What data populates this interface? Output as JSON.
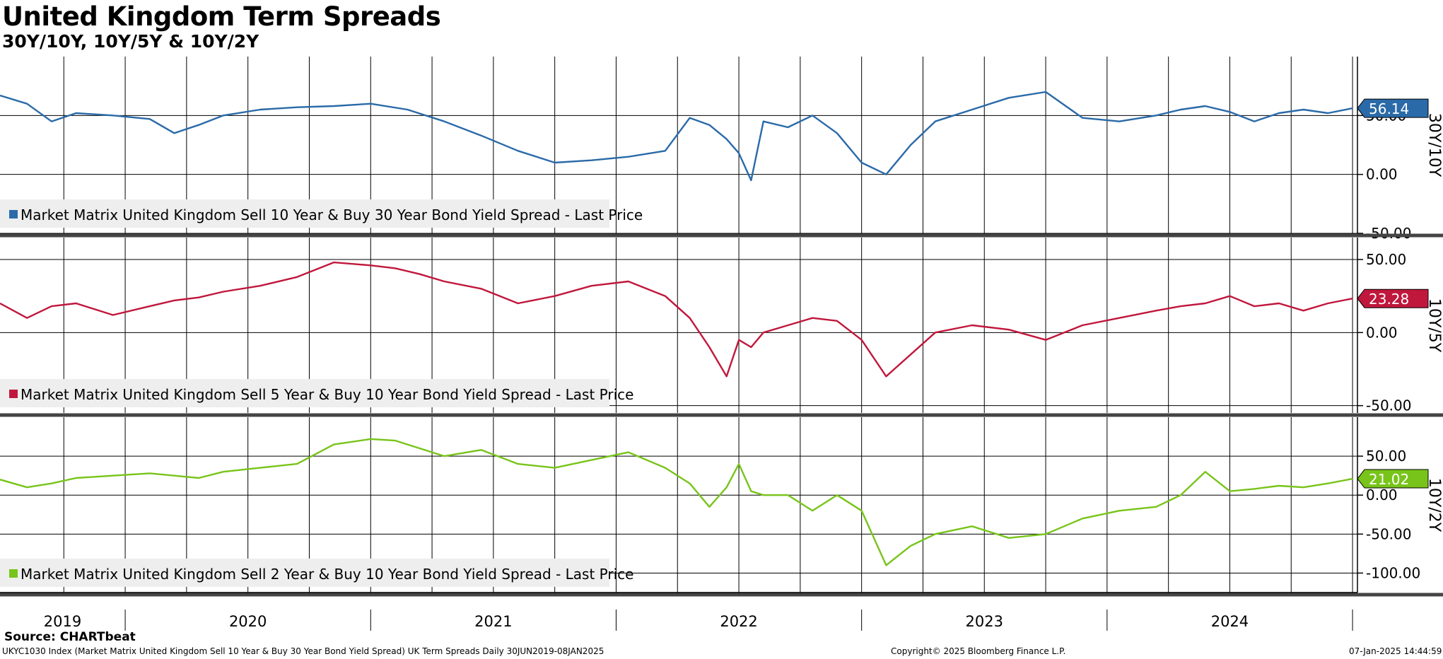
{
  "title": "United Kingdom Term Spreads",
  "subtitle": "30Y/10Y, 10Y/5Y & 10Y/2Y",
  "source": "Source: CHARTbeat",
  "footer": {
    "left": "UKYC1030 Index (Market Matrix United Kingdom Sell 10 Year & Buy 30 Year Bond Yield Spread) UK Term Spreads  Daily 30JUN2019-08JAN2025",
    "center": "Copyright© 2025 Bloomberg Finance L.P.",
    "right": "07-Jan-2025 14:44:59"
  },
  "chart_data": [
    {
      "type": "line",
      "panel_label": "30Y/10Y",
      "legend": "Market Matrix United Kingdom Sell 10 Year & Buy 30 Year Bond Yield Spread - Last Price",
      "color": "#2a6aa8",
      "last_value": "56.14",
      "ylim": [
        -50,
        100
      ],
      "yticks": [
        {
          "v": 50,
          "label": "50.00"
        },
        {
          "v": 0,
          "label": "0.00"
        },
        {
          "v": -50,
          "label": "-50.00"
        }
      ],
      "x": [
        2019.49,
        2019.6,
        2019.7,
        2019.8,
        2019.95,
        2020.1,
        2020.2,
        2020.3,
        2020.4,
        2020.55,
        2020.7,
        2020.85,
        2021.0,
        2021.15,
        2021.3,
        2021.45,
        2021.6,
        2021.75,
        2021.9,
        2022.05,
        2022.2,
        2022.3,
        2022.38,
        2022.45,
        2022.5,
        2022.55,
        2022.6,
        2022.7,
        2022.8,
        2022.9,
        2023.0,
        2023.1,
        2023.2,
        2023.3,
        2023.45,
        2023.6,
        2023.75,
        2023.9,
        2024.05,
        2024.2,
        2024.3,
        2024.4,
        2024.5,
        2024.6,
        2024.7,
        2024.8,
        2024.9,
        2025.0
      ],
      "values": [
        67,
        60,
        45,
        52,
        50,
        47,
        35,
        42,
        50,
        55,
        57,
        58,
        60,
        55,
        45,
        33,
        20,
        10,
        12,
        15,
        20,
        48,
        42,
        30,
        18,
        -5,
        45,
        40,
        50,
        35,
        10,
        0,
        25,
        45,
        55,
        65,
        70,
        48,
        45,
        50,
        55,
        58,
        53,
        45,
        52,
        55,
        52,
        56.14
      ]
    },
    {
      "type": "line",
      "panel_label": "10Y/5Y",
      "legend": "Market Matrix United Kingdom Sell 5 Year & Buy 10 Year Bond Yield Spread - Last Price",
      "color": "#c0173c",
      "last_value": "23.28",
      "ylim": [
        -55,
        65
      ],
      "yticks": [
        {
          "v": 50,
          "label": "50.00"
        },
        {
          "v": 0,
          "label": "0.00"
        },
        {
          "v": -50,
          "label": "-50.00"
        }
      ],
      "x": [
        2019.49,
        2019.6,
        2019.7,
        2019.8,
        2019.95,
        2020.1,
        2020.2,
        2020.3,
        2020.4,
        2020.55,
        2020.7,
        2020.85,
        2021.0,
        2021.1,
        2021.2,
        2021.3,
        2021.45,
        2021.6,
        2021.75,
        2021.9,
        2022.05,
        2022.2,
        2022.3,
        2022.38,
        2022.45,
        2022.5,
        2022.55,
        2022.6,
        2022.7,
        2022.8,
        2022.9,
        2023.0,
        2023.1,
        2023.2,
        2023.3,
        2023.45,
        2023.6,
        2023.75,
        2023.9,
        2024.05,
        2024.2,
        2024.3,
        2024.4,
        2024.5,
        2024.6,
        2024.7,
        2024.8,
        2024.9,
        2025.0
      ],
      "values": [
        20,
        10,
        18,
        20,
        12,
        18,
        22,
        24,
        28,
        32,
        38,
        48,
        46,
        44,
        40,
        35,
        30,
        20,
        25,
        32,
        35,
        25,
        10,
        -10,
        -30,
        -5,
        -10,
        0,
        5,
        10,
        8,
        -5,
        -30,
        -15,
        0,
        5,
        2,
        -5,
        5,
        10,
        15,
        18,
        20,
        25,
        18,
        20,
        15,
        20,
        23.28
      ]
    },
    {
      "type": "line",
      "panel_label": "10Y/2Y",
      "legend": "Market Matrix United Kingdom Sell 2 Year & Buy 10 Year Bond Yield Spread - Last Price",
      "color": "#78c41a",
      "last_value": "21.02",
      "ylim": [
        -125,
        100
      ],
      "yticks": [
        {
          "v": 50,
          "label": "50.00"
        },
        {
          "v": 0,
          "label": "0.00"
        },
        {
          "v": -50,
          "label": "-50.00"
        },
        {
          "v": -100,
          "label": "-100.00"
        }
      ],
      "x": [
        2019.49,
        2019.6,
        2019.7,
        2019.8,
        2019.95,
        2020.1,
        2020.2,
        2020.3,
        2020.4,
        2020.55,
        2020.7,
        2020.85,
        2021.0,
        2021.1,
        2021.2,
        2021.3,
        2021.45,
        2021.6,
        2021.75,
        2021.9,
        2022.05,
        2022.2,
        2022.3,
        2022.38,
        2022.45,
        2022.5,
        2022.55,
        2022.6,
        2022.7,
        2022.8,
        2022.9,
        2023.0,
        2023.1,
        2023.2,
        2023.3,
        2023.45,
        2023.6,
        2023.75,
        2023.9,
        2024.05,
        2024.2,
        2024.3,
        2024.4,
        2024.5,
        2024.6,
        2024.7,
        2024.8,
        2024.9,
        2025.0
      ],
      "values": [
        20,
        10,
        15,
        22,
        25,
        28,
        25,
        22,
        30,
        35,
        40,
        65,
        72,
        70,
        60,
        50,
        58,
        40,
        35,
        45,
        55,
        35,
        15,
        -15,
        10,
        40,
        5,
        0,
        0,
        -20,
        0,
        -20,
        -90,
        -65,
        -50,
        -40,
        -55,
        -50,
        -30,
        -20,
        -15,
        0,
        30,
        5,
        8,
        12,
        10,
        15,
        21.02
      ]
    }
  ],
  "x_axis": {
    "range": [
      2019.49,
      2025.02
    ],
    "year_labels": [
      "2019",
      "2020",
      "2021",
      "2022",
      "2023",
      "2024"
    ]
  }
}
